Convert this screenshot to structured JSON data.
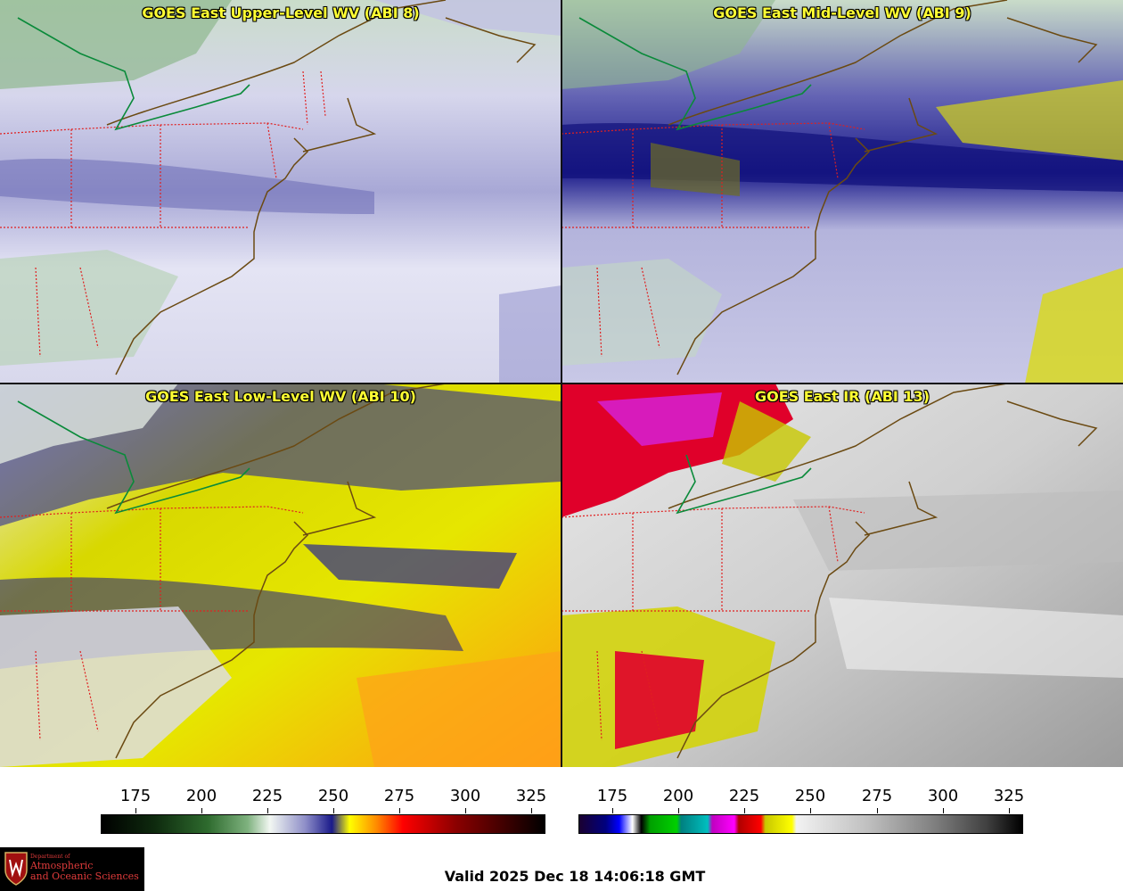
{
  "panels": [
    {
      "title": "GOES East Upper-Level WV (ABI 8)"
    },
    {
      "title": "GOES East Mid-Level WV (ABI 9)"
    },
    {
      "title": "GOES East Low-Level WV (ABI 10)"
    },
    {
      "title": "GOES East IR (ABI 13)"
    }
  ],
  "scales": {
    "wv": {
      "ticks": [
        "175",
        "200",
        "225",
        "250",
        "275",
        "300",
        "325"
      ],
      "colors": [
        "#000000",
        "#0e2a0e",
        "#2e6b2e",
        "#7fb27f",
        "#f2f7f2",
        "#8e8ec8",
        "#1a1a8a",
        "#ffff00",
        "#ff8c00",
        "#ff0000",
        "#8b0000",
        "#000000"
      ]
    },
    "ir": {
      "ticks": [
        "175",
        "200",
        "225",
        "250",
        "275",
        "300",
        "325"
      ]
    }
  },
  "logo": {
    "line0": "Department of",
    "line1": "Atmospheric",
    "line2": "and Oceanic Sciences"
  },
  "valid_time": "Valid 2025 Dec 18 14:06:18 GMT",
  "colors": {
    "coast": "#6b4a12",
    "state_border": "#e02020",
    "title": "#ffff33",
    "canada_border": "#0a8a3a"
  }
}
